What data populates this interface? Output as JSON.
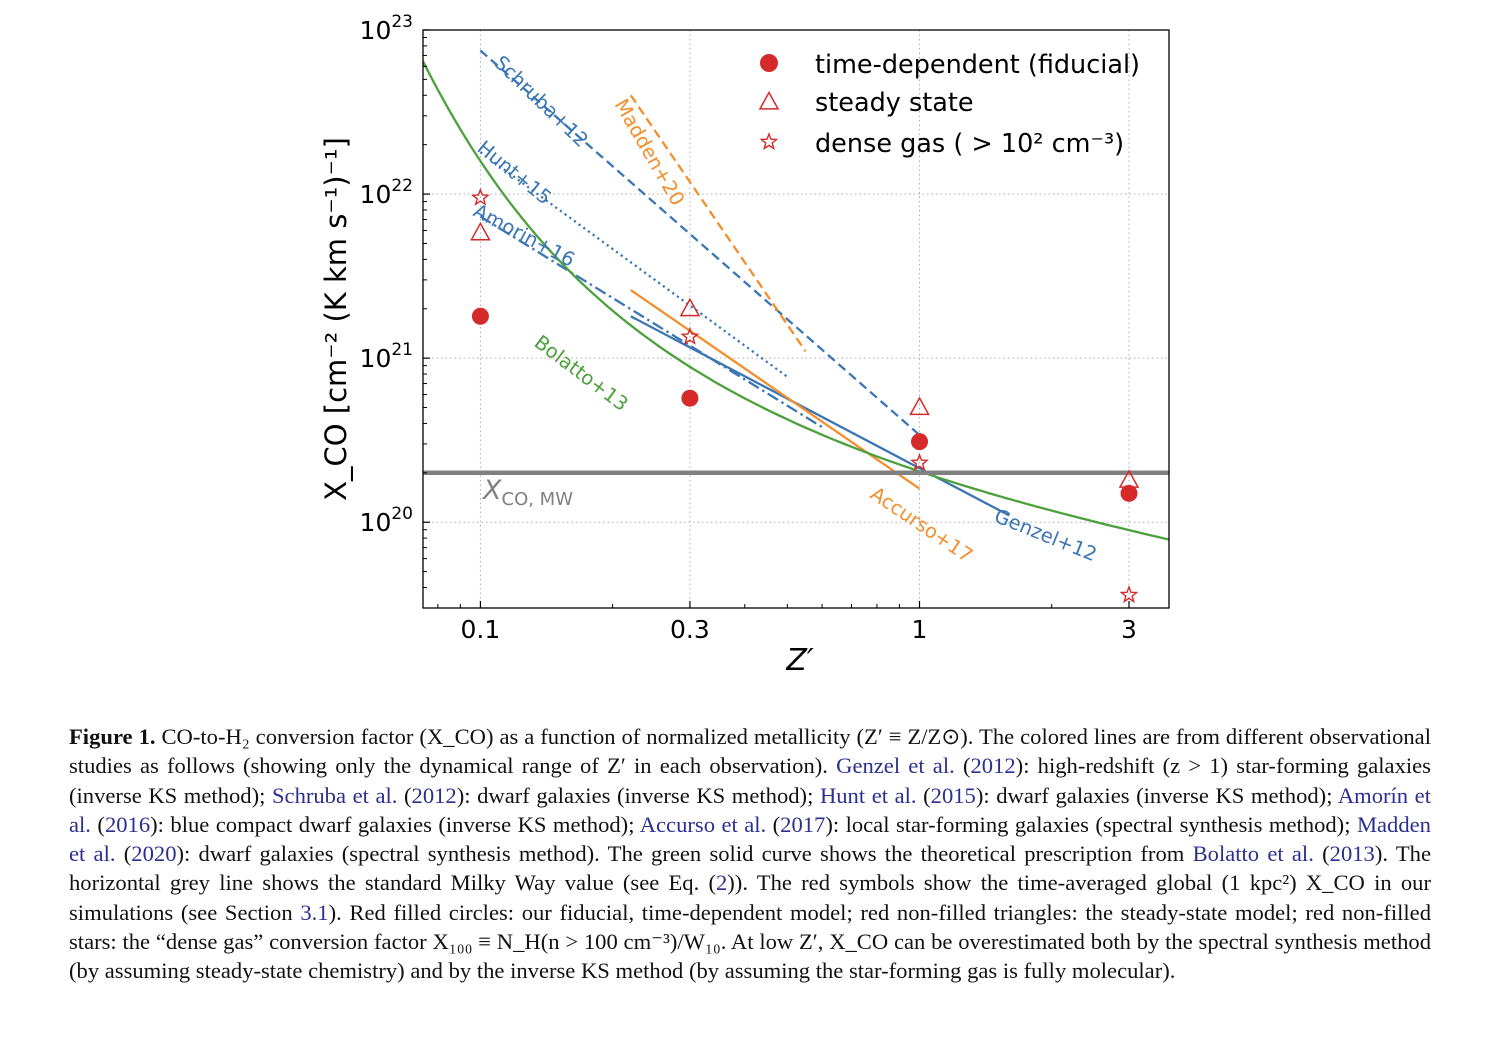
{
  "chart_data": {
    "type": "line",
    "xlabel": "Z′",
    "ylabel": "X_CO [cm⁻² (K km s⁻¹)⁻¹]",
    "xscale": "log",
    "yscale": "log",
    "xlim": [
      0.074,
      3.7
    ],
    "ylim": [
      3e+19,
      1e+23
    ],
    "grid": true,
    "legend_position": "top-right",
    "x_ticks": [
      {
        "value": 0.1,
        "label": "0.1"
      },
      {
        "value": 0.3,
        "label": "0.3"
      },
      {
        "value": 1,
        "label": "1"
      },
      {
        "value": 3,
        "label": "3"
      }
    ],
    "y_ticks": [
      {
        "value": 1e+20,
        "base": "10",
        "exp": "20"
      },
      {
        "value": 1e+21,
        "base": "10",
        "exp": "21"
      },
      {
        "value": 1e+22,
        "base": "10",
        "exp": "22"
      },
      {
        "value": 1e+23,
        "base": "10",
        "exp": "23"
      }
    ],
    "legend": [
      {
        "marker": "filled-circle",
        "label": "time-dependent (fiducial)"
      },
      {
        "marker": "open-triangle",
        "label": "steady state"
      },
      {
        "marker": "open-star",
        "label": "dense gas ( > 10² cm⁻³)"
      }
    ],
    "points": {
      "time_dependent": {
        "x": [
          0.1,
          0.3,
          1,
          3
        ],
        "y": [
          1.8e+21,
          5.7e+20,
          3.1e+20,
          1.5e+20
        ]
      },
      "steady_state": {
        "x": [
          0.1,
          0.3,
          1,
          3
        ],
        "y": [
          5.8e+21,
          2e+21,
          5e+20,
          1.8e+20
        ]
      },
      "dense_gas": {
        "x": [
          0.1,
          0.3,
          1,
          3
        ],
        "y": [
          9.5e+21,
          1.35e+21,
          2.3e+20,
          3.6e+19
        ]
      }
    },
    "series": [
      {
        "name": "Schruba+12",
        "color": "#3a76b4",
        "dash": "dashed",
        "x": [
          0.1,
          1
        ],
        "y": [
          7.5e+22,
          3.4e+20
        ]
      },
      {
        "name": "Madden+20",
        "color": "#f28e2b",
        "dash": "dashed",
        "x": [
          0.22,
          0.55
        ],
        "y": [
          4e+22,
          1.1e+21
        ]
      },
      {
        "name": "Hunt+15",
        "color": "#3a76b4",
        "dash": "dotted",
        "x": [
          0.1,
          0.5
        ],
        "y": [
          1.8e+22,
          7.7e+20
        ]
      },
      {
        "name": "Amorin+16",
        "color": "#3a76b4",
        "dash": "dashdot",
        "x": [
          0.1,
          0.6
        ],
        "y": [
          7.3e+21,
          3.8e+20
        ]
      },
      {
        "name": "Genzel+12",
        "color": "#3a76b4",
        "dash": "solid",
        "x": [
          0.22,
          1.6
        ],
        "y": [
          1.8e+21,
          1.1e+20
        ]
      },
      {
        "name": "Accurso+17",
        "color": "#f28e2b",
        "dash": "solid",
        "x": [
          0.22,
          1.0
        ],
        "y": [
          2.6e+21,
          1.6e+20
        ]
      },
      {
        "name": "Bolatto+13",
        "color": "#4ca03c",
        "dash": "solid",
        "function": "bolatto",
        "x": [
          0.074,
          0.1,
          0.15,
          0.2,
          0.3,
          0.5,
          0.8,
          1,
          1.5,
          2,
          3,
          3.7
        ],
        "y": [
          2e+22,
          6.5e+21,
          2.5e+21,
          1.35e+21,
          6e+20,
          3e+20,
          2.1e+20,
          1.9e+20,
          1.68e+20,
          1.6e+20,
          1.52e+20,
          1.49e+20
        ]
      },
      {
        "name": "X_CO, MW",
        "color": "#808080",
        "dash": "solid",
        "x": [
          0.074,
          3.7
        ],
        "y": [
          2e+20,
          2e+20
        ]
      }
    ],
    "annotations": [
      {
        "text": "Schruba+12",
        "color": "#3a76b4"
      },
      {
        "text": "Madden+20",
        "color": "#f28e2b"
      },
      {
        "text": "Hunt+15",
        "color": "#3a76b4"
      },
      {
        "text": "Amorin+16",
        "color": "#3a76b4"
      },
      {
        "text": "Bolatto+13",
        "color": "#4ca03c"
      },
      {
        "text": "Accurso+17",
        "color": "#f28e2b"
      },
      {
        "text": "Genzel+12",
        "color": "#3a76b4"
      },
      {
        "text": "X",
        "sub": "CO, MW",
        "color": "#808080"
      }
    ],
    "colors": {
      "red": "#d42a2a",
      "blue": "#3a76b4",
      "orange": "#f28e2b",
      "green": "#4ca03c",
      "grey": "#808080"
    }
  },
  "caption": {
    "label": "Figure 1.",
    "segments": [
      {
        "text": " CO-to-H₂ conversion factor (X_CO) as a function of normalized metallicity (Z′ ≡ Z/Z⊙). The colored lines are from different observational studies as follows (showing only the dynamical range of Z′ in each observation). "
      },
      {
        "text": "Genzel et al.",
        "cite": true
      },
      {
        "text": " ("
      },
      {
        "text": "2012",
        "cite": true
      },
      {
        "text": "): high-redshift (z > 1) star-forming galaxies (inverse KS method); "
      },
      {
        "text": "Schruba et al.",
        "cite": true
      },
      {
        "text": " ("
      },
      {
        "text": "2012",
        "cite": true
      },
      {
        "text": "): dwarf galaxies (inverse KS method); "
      },
      {
        "text": "Hunt et al.",
        "cite": true
      },
      {
        "text": " ("
      },
      {
        "text": "2015",
        "cite": true
      },
      {
        "text": "): dwarf galaxies (inverse KS method); "
      },
      {
        "text": "Amorín et al.",
        "cite": true
      },
      {
        "text": " ("
      },
      {
        "text": "2016",
        "cite": true
      },
      {
        "text": "): blue compact dwarf galaxies (inverse KS method); "
      },
      {
        "text": "Accurso et al.",
        "cite": true
      },
      {
        "text": " ("
      },
      {
        "text": "2017",
        "cite": true
      },
      {
        "text": "): local star-forming galaxies (spectral synthesis method); "
      },
      {
        "text": "Madden et al.",
        "cite": true
      },
      {
        "text": " ("
      },
      {
        "text": "2020",
        "cite": true
      },
      {
        "text": "): dwarf galaxies (spectral synthesis method). The green solid curve shows the theoretical prescription from "
      },
      {
        "text": "Bolatto et al.",
        "cite": true
      },
      {
        "text": " ("
      },
      {
        "text": "2013",
        "cite": true
      },
      {
        "text": "). The horizontal grey line shows the standard Milky Way value (see Eq. ("
      },
      {
        "text": "2",
        "cite": true
      },
      {
        "text": ")). The red symbols show the time-averaged global (1 kpc²) X_CO in our simulations (see Section "
      },
      {
        "text": "3.1",
        "cite": true
      },
      {
        "text": "). Red filled circles: our fiducial, time-dependent model; red non-filled triangles: the steady-state model; red non-filled stars: the “dense gas” conversion factor X₁₀₀ ≡ N_H(n > 100 cm⁻³)/W₁₀. At low Z′, X_CO can be overestimated both by the spectral synthesis method (by assuming steady-state chemistry) and by the inverse KS method (by assuming the star-forming gas is fully molecular)."
      }
    ]
  }
}
